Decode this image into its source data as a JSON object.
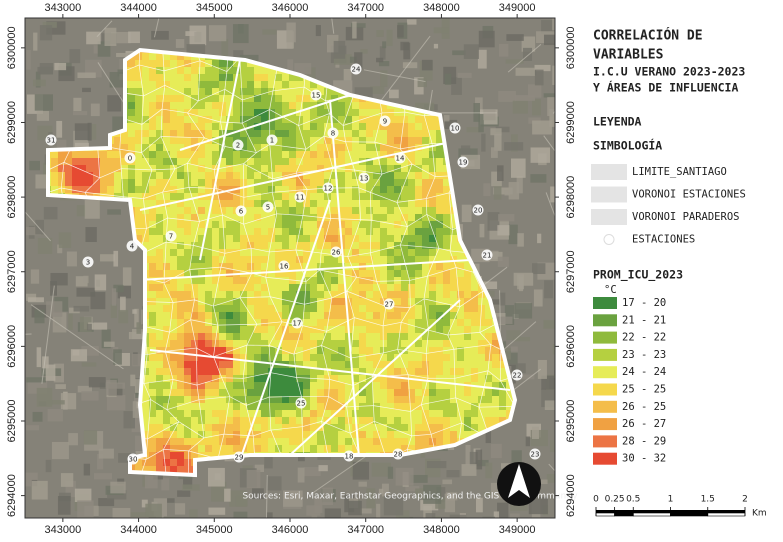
{
  "title": [
    "CORRELACIÓN DE",
    "VARIABLES"
  ],
  "subtitle": [
    "I.C.U VERANO 2023-2023",
    "Y ÁREAS DE INFLUENCIA"
  ],
  "legend_heading": "LEYENDA",
  "symbology_heading": "SIMBOLOGÍA",
  "layers": [
    "LIMITE_SANTIAGO",
    "VORONOI ESTACIONES",
    "VORONOI PARADEROS",
    "ESTACIONES"
  ],
  "field": "PROM_ICU_2023",
  "unit": "°C",
  "classes": [
    {
      "label": "17 - 20",
      "color": "#3d8b3d"
    },
    {
      "label": "21 - 21",
      "color": "#6aa23f"
    },
    {
      "label": "22 - 22",
      "color": "#8fba3c"
    },
    {
      "label": "23 - 23",
      "color": "#b5d040"
    },
    {
      "label": "24 - 24",
      "color": "#e6ec58"
    },
    {
      "label": "25 - 25",
      "color": "#f5d84c"
    },
    {
      "label": "26 - 25",
      "color": "#f4bd4a"
    },
    {
      "label": "26 - 27",
      "color": "#f0a142"
    },
    {
      "label": "28 - 29",
      "color": "#ec7444"
    },
    {
      "label": "30 - 32",
      "color": "#e64a32"
    }
  ],
  "scale_bar": {
    "ticks": [
      0,
      0.25,
      0.5,
      1,
      1.5,
      2
    ],
    "unit": "Km"
  },
  "map": {
    "xlim": [
      342500,
      349500
    ],
    "ylim": [
      6293700,
      6300400
    ],
    "xticks": [
      343000,
      344000,
      345000,
      346000,
      347000,
      348000,
      349000
    ],
    "yticks": [
      6294000,
      6295000,
      6296000,
      6297000,
      6298000,
      6299000,
      6300000
    ],
    "attribution": "Sources: Esri, Maxar, Earthstar Geographics, and the GIS User Community",
    "stations": [
      "0",
      "1",
      "2",
      "3",
      "4",
      "5",
      "6",
      "7",
      "8",
      "9",
      "10",
      "11",
      "12",
      "13",
      "14",
      "15",
      "16",
      "17",
      "18",
      "19",
      "20",
      "21",
      "22",
      "23",
      "24",
      "25",
      "26",
      "27",
      "28",
      "29",
      "30",
      "31"
    ]
  }
}
